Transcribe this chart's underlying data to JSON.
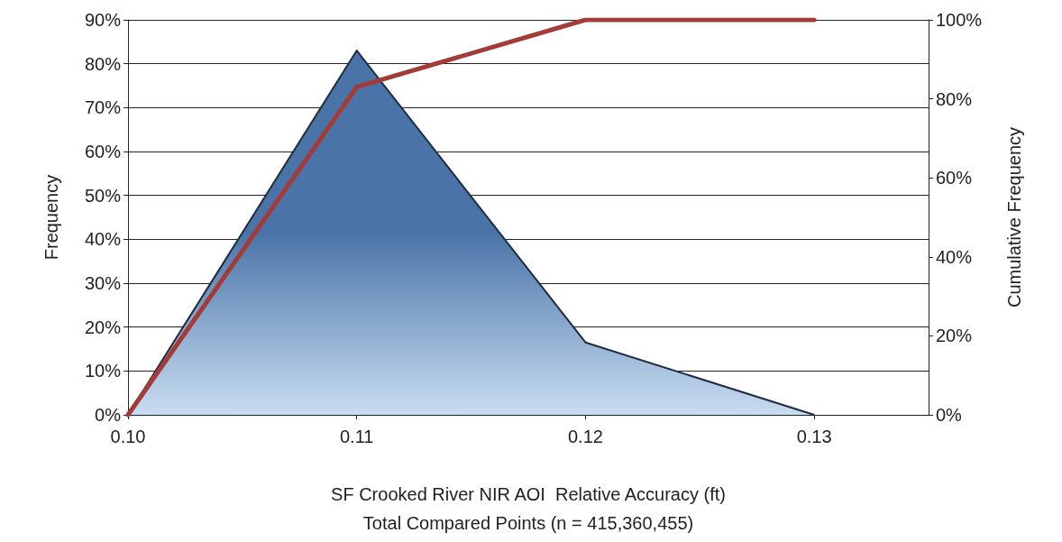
{
  "chart_data": {
    "type": "area",
    "xlabel": "SF Crooked River NIR AOI  Relative Accuracy (ft)\nTotal Compared Points (n = 415,360,455)",
    "ylabel": "Frequency",
    "y2label": "Cumulative Frequency",
    "x": [
      0.1,
      0.11,
      0.12,
      0.13
    ],
    "series": [
      {
        "color": "#4a74a8",
        "values": [
          0,
          83,
          16.5,
          0
        ]
      },
      {
        "type": "line",
        "axis": "y2",
        "color": "#a33b38",
        "values": [
          0,
          83,
          100,
          100
        ]
      }
    ],
    "xlim": [
      0.1,
      0.135
    ],
    "xticks": [
      {
        "value": 0.1,
        "label": "0.10"
      },
      {
        "value": 0.11,
        "label": "0.11"
      },
      {
        "value": 0.12,
        "label": "0.12"
      },
      {
        "value": 0.13,
        "label": "0.13"
      }
    ],
    "ylim": [
      0,
      90
    ],
    "yticks": [
      {
        "value": 0,
        "label": "0%"
      },
      {
        "value": 10,
        "label": "10%"
      },
      {
        "value": 20,
        "label": "20%"
      },
      {
        "value": 30,
        "label": "30%"
      },
      {
        "value": 40,
        "label": "40%"
      },
      {
        "value": 50,
        "label": "50%"
      },
      {
        "value": 60,
        "label": "60%"
      },
      {
        "value": 70,
        "label": "70%"
      },
      {
        "value": 80,
        "label": "80%"
      },
      {
        "value": 90,
        "label": "90%"
      }
    ],
    "y2lim": [
      0,
      100
    ],
    "y2ticks": [
      {
        "value": 0,
        "label": "0%"
      },
      {
        "value": 20,
        "label": "20%"
      },
      {
        "value": 40,
        "label": "40%"
      },
      {
        "value": 60,
        "label": "60%"
      },
      {
        "value": 80,
        "label": "80%"
      },
      {
        "value": 100,
        "label": "100%"
      }
    ],
    "grid": "y",
    "marker": "none",
    "line_style": "solid"
  }
}
